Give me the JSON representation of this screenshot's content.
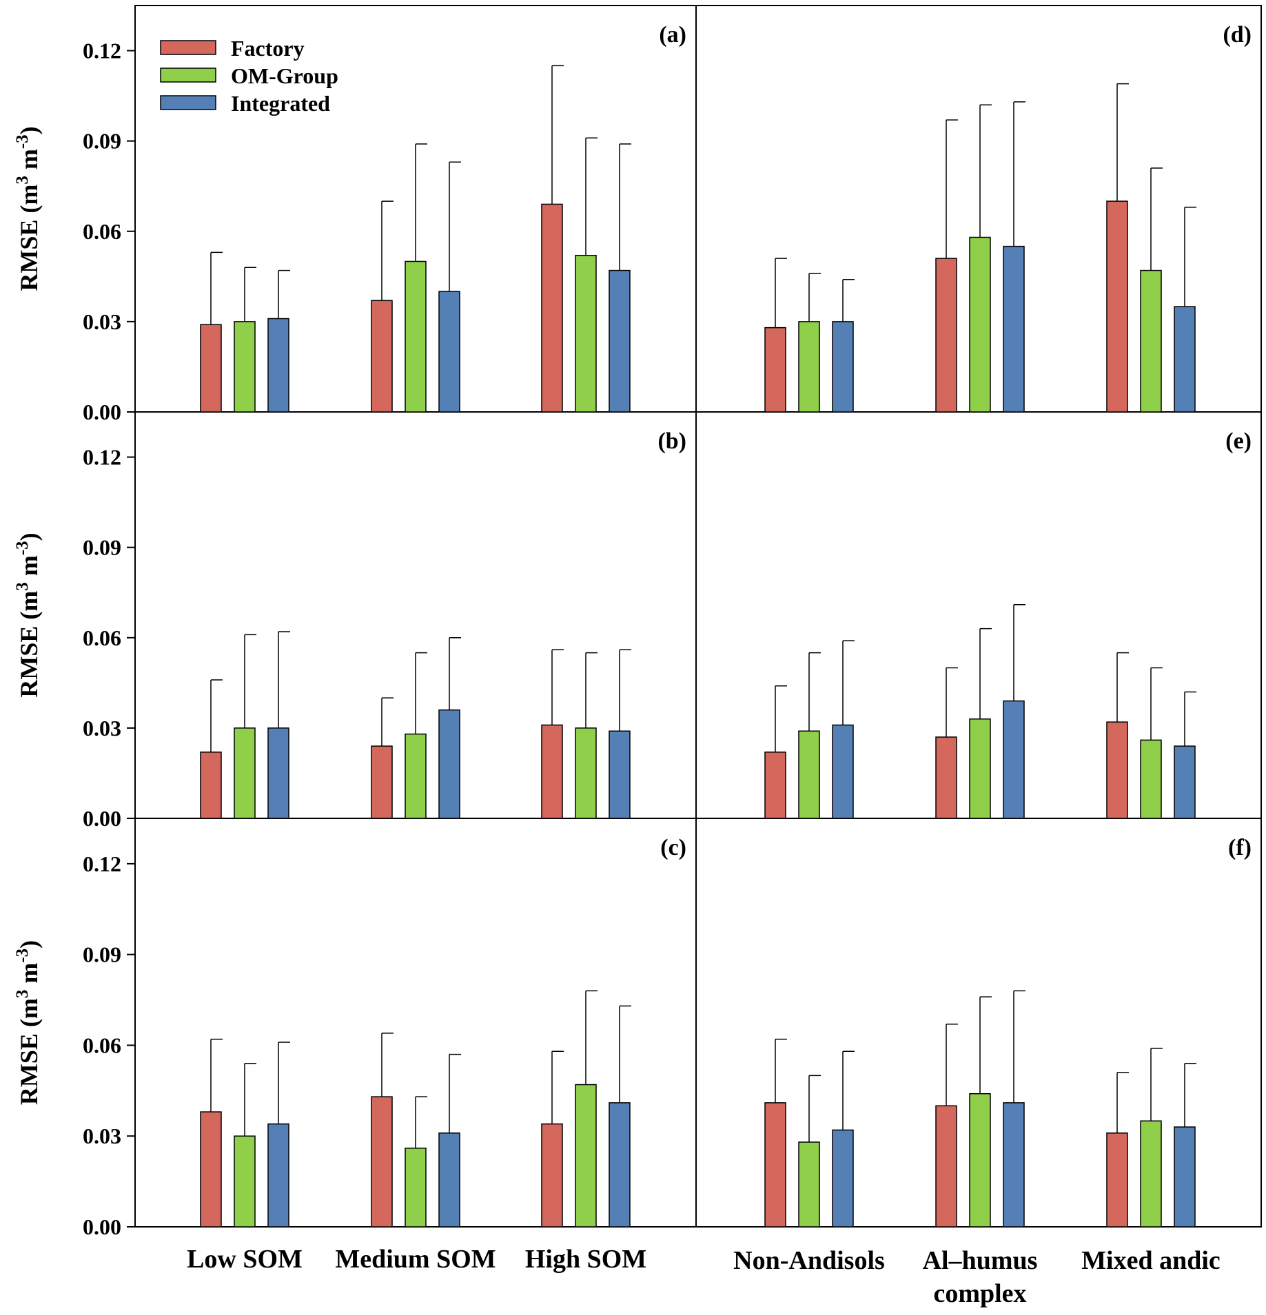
{
  "chart_data": [
    {
      "type": "bar",
      "panel_label": "(a)",
      "categories": [
        "Low SOM",
        "Medium SOM",
        "High SOM"
      ],
      "series": [
        {
          "name": "Factory",
          "values": [
            0.029,
            0.037,
            0.069
          ],
          "error": [
            0.053,
            0.07,
            0.115
          ]
        },
        {
          "name": "OM-Group",
          "values": [
            0.03,
            0.05,
            0.052
          ],
          "error": [
            0.048,
            0.089,
            0.091
          ]
        },
        {
          "name": "Integrated",
          "values": [
            0.031,
            0.04,
            0.047
          ],
          "error": [
            0.047,
            0.083,
            0.089
          ]
        }
      ],
      "ylabel": "RMSE (m3 m-3)",
      "ylim": [
        0,
        0.135
      ],
      "yticks": [
        "0.00",
        "0.03",
        "0.06",
        "0.09",
        "0.12"
      ]
    },
    {
      "type": "bar",
      "panel_label": "(b)",
      "categories": [
        "Low SOM",
        "Medium SOM",
        "High SOM"
      ],
      "series": [
        {
          "name": "Factory",
          "values": [
            0.022,
            0.024,
            0.031
          ],
          "error": [
            0.046,
            0.04,
            0.056
          ]
        },
        {
          "name": "OM-Group",
          "values": [
            0.03,
            0.028,
            0.03
          ],
          "error": [
            0.061,
            0.055,
            0.055
          ]
        },
        {
          "name": "Integrated",
          "values": [
            0.03,
            0.036,
            0.029
          ],
          "error": [
            0.062,
            0.06,
            0.056
          ]
        }
      ],
      "ylabel": "RMSE (m3 m-3)",
      "ylim": [
        0,
        0.135
      ],
      "yticks": [
        "0.00",
        "0.03",
        "0.06",
        "0.09",
        "0.12"
      ]
    },
    {
      "type": "bar",
      "panel_label": "(c)",
      "categories": [
        "Low SOM",
        "Medium SOM",
        "High SOM"
      ],
      "series": [
        {
          "name": "Factory",
          "values": [
            0.038,
            0.043,
            0.034
          ],
          "error": [
            0.062,
            0.064,
            0.058
          ]
        },
        {
          "name": "OM-Group",
          "values": [
            0.03,
            0.026,
            0.047
          ],
          "error": [
            0.054,
            0.043,
            0.078
          ]
        },
        {
          "name": "Integrated",
          "values": [
            0.034,
            0.031,
            0.041
          ],
          "error": [
            0.061,
            0.057,
            0.073
          ]
        }
      ],
      "ylabel": "RMSE (m3 m-3)",
      "ylim": [
        0,
        0.135
      ],
      "yticks": [
        "0.00",
        "0.03",
        "0.06",
        "0.09",
        "0.12"
      ]
    },
    {
      "type": "bar",
      "panel_label": "(d)",
      "categories": [
        "Non-Andisols",
        "Al–humus complex",
        "Mixed andic"
      ],
      "series": [
        {
          "name": "Factory",
          "values": [
            0.028,
            0.051,
            0.07
          ],
          "error": [
            0.051,
            0.097,
            0.109
          ]
        },
        {
          "name": "OM-Group",
          "values": [
            0.03,
            0.058,
            0.047
          ],
          "error": [
            0.046,
            0.102,
            0.081
          ]
        },
        {
          "name": "Integrated",
          "values": [
            0.03,
            0.055,
            0.035
          ],
          "error": [
            0.044,
            0.103,
            0.068
          ]
        }
      ],
      "ylim": [
        0,
        0.135
      ]
    },
    {
      "type": "bar",
      "panel_label": "(e)",
      "categories": [
        "Non-Andisols",
        "Al–humus complex",
        "Mixed andic"
      ],
      "series": [
        {
          "name": "Factory",
          "values": [
            0.022,
            0.027,
            0.032
          ],
          "error": [
            0.044,
            0.05,
            0.055
          ]
        },
        {
          "name": "OM-Group",
          "values": [
            0.029,
            0.033,
            0.026
          ],
          "error": [
            0.055,
            0.063,
            0.05
          ]
        },
        {
          "name": "Integrated",
          "values": [
            0.031,
            0.039,
            0.024
          ],
          "error": [
            0.059,
            0.071,
            0.042
          ]
        }
      ],
      "ylim": [
        0,
        0.135
      ]
    },
    {
      "type": "bar",
      "panel_label": "(f)",
      "categories": [
        "Non-Andisols",
        "Al–humus complex",
        "Mixed andic"
      ],
      "series": [
        {
          "name": "Factory",
          "values": [
            0.041,
            0.04,
            0.031
          ],
          "error": [
            0.062,
            0.067,
            0.051
          ]
        },
        {
          "name": "OM-Group",
          "values": [
            0.028,
            0.044,
            0.035
          ],
          "error": [
            0.05,
            0.076,
            0.059
          ]
        },
        {
          "name": "Integrated",
          "values": [
            0.032,
            0.041,
            0.033
          ],
          "error": [
            0.058,
            0.078,
            0.054
          ]
        }
      ],
      "ylim": [
        0,
        0.135
      ]
    }
  ],
  "legend": [
    {
      "label": "Factory",
      "color": "#d5685c"
    },
    {
      "label": "OM-Group",
      "color": "#8fcf4a"
    },
    {
      "label": "Integrated",
      "color": "#5580b6"
    }
  ],
  "ylabel_text": {
    "base": "RMSE (m",
    "sup1": "3",
    "mid": " m",
    "sup2": "-3",
    "end": ")"
  },
  "x_labels_left": [
    "Low SOM",
    "Medium SOM",
    "High SOM"
  ],
  "x_labels_right": [
    [
      "Non-Andisols"
    ],
    [
      "Al–humus",
      "complex"
    ],
    [
      "Mixed andic"
    ]
  ]
}
